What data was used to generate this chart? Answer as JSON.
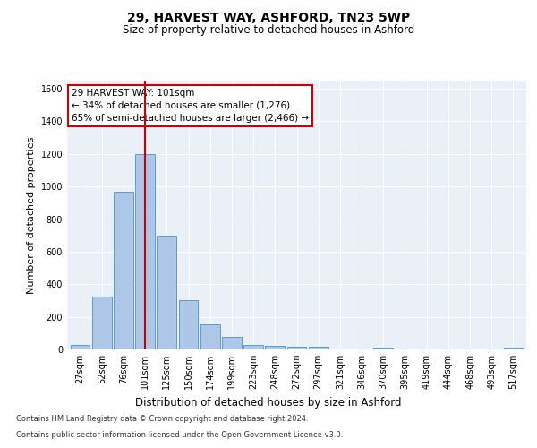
{
  "title1": "29, HARVEST WAY, ASHFORD, TN23 5WP",
  "title2": "Size of property relative to detached houses in Ashford",
  "xlabel": "Distribution of detached houses by size in Ashford",
  "ylabel": "Number of detached properties",
  "bar_labels": [
    "27sqm",
    "52sqm",
    "76sqm",
    "101sqm",
    "125sqm",
    "150sqm",
    "174sqm",
    "199sqm",
    "223sqm",
    "248sqm",
    "272sqm",
    "297sqm",
    "321sqm",
    "346sqm",
    "370sqm",
    "395sqm",
    "419sqm",
    "444sqm",
    "468sqm",
    "493sqm",
    "517sqm"
  ],
  "bar_values": [
    30,
    325,
    970,
    1200,
    700,
    305,
    155,
    75,
    30,
    20,
    15,
    15,
    0,
    0,
    10,
    0,
    0,
    0,
    0,
    0,
    10
  ],
  "bar_color": "#aec6e8",
  "bar_edge_color": "#5b9bd5",
  "vline_x": 3,
  "vline_color": "#cc0000",
  "annotation_text": "29 HARVEST WAY: 101sqm\n← 34% of detached houses are smaller (1,276)\n65% of semi-detached houses are larger (2,466) →",
  "annotation_box_color": "#ffffff",
  "annotation_box_edge": "#cc0000",
  "ylim": [
    0,
    1650
  ],
  "yticks": [
    0,
    200,
    400,
    600,
    800,
    1000,
    1200,
    1400,
    1600
  ],
  "footer1": "Contains HM Land Registry data © Crown copyright and database right 2024.",
  "footer2": "Contains public sector information licensed under the Open Government Licence v3.0.",
  "plot_bg_color": "#eaf0f8"
}
